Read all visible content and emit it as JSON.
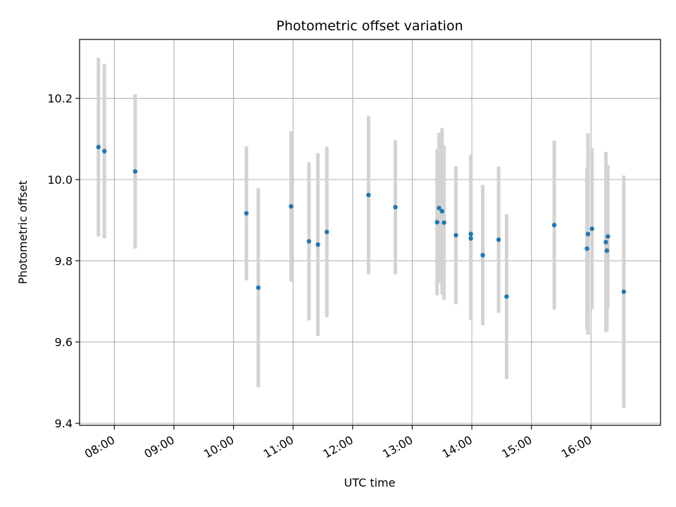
{
  "chart_data": {
    "type": "scatter",
    "title": "Photometric offset variation",
    "xlabel": "UTC time",
    "ylabel": "Photometric offset",
    "x_axis": "time",
    "xlim": [
      "07:25",
      "17:10"
    ],
    "ylim": [
      9.395,
      10.345
    ],
    "x_ticks": [
      "08:00",
      "09:00",
      "10:00",
      "11:00",
      "12:00",
      "13:00",
      "14:00",
      "15:00",
      "16:00"
    ],
    "y_ticks": [
      9.4,
      9.6,
      9.8,
      10.0,
      10.2
    ],
    "grid": true,
    "point_color": "#1f77b4",
    "errorbar_color": "#d3d3d3",
    "points": [
      {
        "x": "07:44",
        "y": 10.08,
        "err": 0.22
      },
      {
        "x": "07:50",
        "y": 10.07,
        "err": 0.215
      },
      {
        "x": "08:21",
        "y": 10.02,
        "err": 0.19
      },
      {
        "x": "10:13",
        "y": 9.917,
        "err": 0.165
      },
      {
        "x": "10:25",
        "y": 9.734,
        "err": 0.245
      },
      {
        "x": "10:58",
        "y": 9.934,
        "err": 0.185
      },
      {
        "x": "11:16",
        "y": 9.848,
        "err": 0.195
      },
      {
        "x": "11:25",
        "y": 9.84,
        "err": 0.225
      },
      {
        "x": "11:34",
        "y": 9.871,
        "err": 0.21
      },
      {
        "x": "12:16",
        "y": 9.962,
        "err": 0.195
      },
      {
        "x": "12:43",
        "y": 9.932,
        "err": 0.165
      },
      {
        "x": "13:25",
        "y": 9.895,
        "err": 0.18
      },
      {
        "x": "13:27",
        "y": 9.93,
        "err": 0.185
      },
      {
        "x": "13:30",
        "y": 9.922,
        "err": 0.205
      },
      {
        "x": "13:32",
        "y": 9.894,
        "err": 0.19
      },
      {
        "x": "13:44",
        "y": 9.863,
        "err": 0.17
      },
      {
        "x": "13:59",
        "y": 9.866,
        "err": 0.195
      },
      {
        "x": "13:59",
        "y": 9.855,
        "err": 0.2
      },
      {
        "x": "14:11",
        "y": 9.814,
        "err": 0.173
      },
      {
        "x": "14:27",
        "y": 9.852,
        "err": 0.18
      },
      {
        "x": "14:35",
        "y": 9.712,
        "err": 0.203
      },
      {
        "x": "15:23",
        "y": 9.888,
        "err": 0.208
      },
      {
        "x": "15:56",
        "y": 9.83,
        "err": 0.2
      },
      {
        "x": "15:57",
        "y": 9.866,
        "err": 0.248
      },
      {
        "x": "16:01",
        "y": 9.879,
        "err": 0.198
      },
      {
        "x": "16:15",
        "y": 9.846,
        "err": 0.222
      },
      {
        "x": "16:16",
        "y": 9.825,
        "err": 0.198
      },
      {
        "x": "16:17",
        "y": 9.86,
        "err": 0.176
      },
      {
        "x": "16:33",
        "y": 9.724,
        "err": 0.286
      }
    ]
  }
}
